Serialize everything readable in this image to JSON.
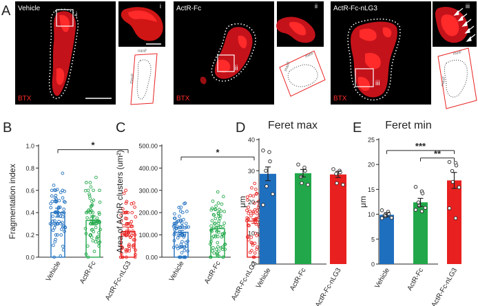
{
  "colors": {
    "vehicle": "#1f6fbf",
    "actr_fc": "#22a84a",
    "actr_fc_nlg3": "#e8201f",
    "stain": "#ff1a1a",
    "micrograph_bg": "#000000",
    "text": "#222222"
  },
  "panel_a": {
    "letter": "A",
    "stain_label": "BTX",
    "images": [
      {
        "condition": "Vehicle",
        "inset": "i",
        "min_label": "minF",
        "max_label": "maxF"
      },
      {
        "condition": "ActR-Fc",
        "inset": "ii",
        "min_label": "minF",
        "max_label": "maxF"
      },
      {
        "condition": "ActR-Fc-nLG3",
        "inset": "iii",
        "inset_zoom": "iii",
        "min_label": "minF",
        "max_label": "maxF"
      }
    ]
  },
  "chart_data": [
    {
      "panel": "B",
      "type": "bar",
      "ylabel": "Fragmentation index",
      "ylim": [
        0,
        1.0
      ],
      "yticks": [
        "0.0",
        "0.2",
        "0.4",
        "0.6",
        "0.8",
        "1.0"
      ],
      "categories": [
        "Vehicle",
        "ActR-Fc",
        "ActR-Fc-nLG3"
      ],
      "values": [
        0.4,
        0.33,
        0.23
      ],
      "sem": [
        0.04,
        0.04,
        0.04
      ],
      "bar_style": "outline",
      "significance": [
        {
          "between": [
            "Vehicle",
            "ActR-Fc-nLG3"
          ],
          "label": "*"
        }
      ]
    },
    {
      "panel": "C",
      "type": "bar",
      "ylabel": "Area of AChR clusters (um²)",
      "ylim": [
        0,
        500
      ],
      "yticks": [
        "0.00",
        "100.00",
        "200.00",
        "300.00",
        "400.00",
        "500.00"
      ],
      "categories": [
        "Vehicle",
        "ActR-Fc",
        "ActR-Fc-nLG3"
      ],
      "values": [
        112,
        128,
        162
      ],
      "sem": [
        8,
        11,
        10
      ],
      "bar_style": "outline",
      "significance": [
        {
          "between": [
            "Vehicle",
            "ActR-Fc-nLG3"
          ],
          "label": "*"
        }
      ]
    },
    {
      "panel": "D",
      "type": "bar",
      "title": "Feret max",
      "ylabel": "μm",
      "ylim": [
        0,
        40
      ],
      "yticks": [
        "0",
        "10",
        "20",
        "30",
        "40"
      ],
      "categories": [
        "Vehicle",
        "ActR-Fc",
        "ActR-Fc-nLG3"
      ],
      "values": [
        29.0,
        29.2,
        28.8
      ],
      "sem": [
        2.2,
        1.2,
        1.0
      ],
      "bar_style": "filled",
      "points": [
        [
          36.5,
          36,
          33,
          30,
          25,
          22.5,
          19
        ],
        [
          32,
          31,
          30,
          28,
          26,
          25.5
        ],
        [
          30.5,
          30,
          29.5,
          29,
          26,
          25.5
        ]
      ]
    },
    {
      "panel": "E",
      "type": "bar",
      "title": "Feret min",
      "ylabel": "μm",
      "ylim": [
        0,
        25
      ],
      "yticks": [
        "0",
        "5",
        "10",
        "15",
        "20",
        "25"
      ],
      "categories": [
        "Vehicle",
        "ActR-Fc",
        "ActR-Fc-nLG3"
      ],
      "values": [
        9.9,
        12.4,
        16.8
      ],
      "sem": [
        0.4,
        0.8,
        1.6
      ],
      "bar_style": "filled",
      "points": [
        [
          10.8,
          10.5,
          10.1,
          9.8,
          9.6,
          9.3,
          9.2
        ],
        [
          15.5,
          14.6,
          14.2,
          12.4,
          11.7,
          11.3,
          10.9,
          10.6
        ],
        [
          20.5,
          20.3,
          19.8,
          18.7,
          16.5,
          15.4,
          11.2,
          9.2
        ]
      ],
      "significance": [
        {
          "between": [
            "Vehicle",
            "ActR-Fc-nLG3"
          ],
          "label": "***"
        },
        {
          "between": [
            "ActR-Fc",
            "ActR-Fc-nLG3"
          ],
          "label": "**"
        }
      ]
    }
  ],
  "panel_letters": [
    "B",
    "C",
    "D",
    "E"
  ]
}
